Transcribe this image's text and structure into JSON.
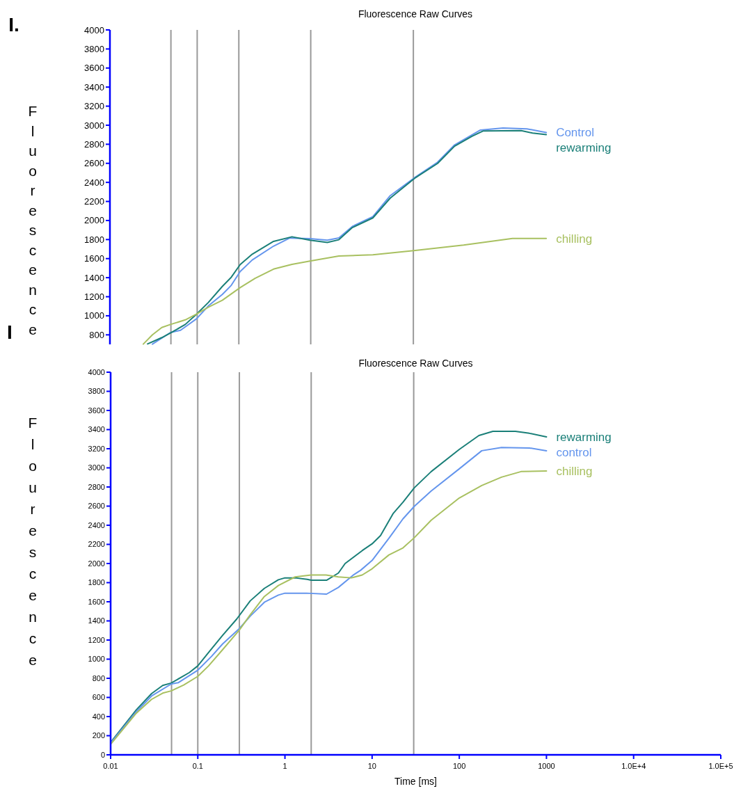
{
  "chart_data": [
    {
      "type": "line",
      "title": "Fluorescence Raw Curves",
      "ylabel": "Fluorescence",
      "annotations": [
        "I.",
        "I"
      ],
      "log": "x",
      "xlim": [
        0.01,
        100000
      ],
      "ylim": [
        700,
        4000
      ],
      "yticks": [
        800,
        1000,
        1200,
        1400,
        1600,
        1800,
        2000,
        2200,
        2400,
        2600,
        2800,
        3000,
        3200,
        3400,
        3600,
        3800,
        4000
      ],
      "tick_labels": "y",
      "ref_lines": [
        {
          "axis": "x",
          "value": 0.05,
          "color": "#999999"
        },
        {
          "axis": "x",
          "value": 0.1,
          "color": "#999999"
        },
        {
          "axis": "x",
          "value": 0.3,
          "color": "#999999"
        },
        {
          "axis": "x",
          "value": 2,
          "color": "#999999"
        },
        {
          "axis": "x",
          "value": 30,
          "color": "#999999"
        }
      ],
      "series": [
        {
          "name": "Control",
          "color": "#6495ed",
          "x": [
            0.0307,
            0.0494,
            0.0644,
            0.0985,
            0.134,
            0.194,
            0.246,
            0.311,
            0.428,
            0.75,
            1.15,
            1.96,
            3.1,
            4.2,
            6.0,
            10.3,
            16.3,
            31.6,
            56.7,
            89,
            176,
            320,
            600,
            1000
          ],
          "values": [
            703,
            824,
            848,
            969,
            1103,
            1224,
            1320,
            1465,
            1586,
            1731,
            1816,
            1809,
            1793,
            1817,
            1938,
            2040,
            2261,
            2455,
            2611,
            2793,
            2949,
            2970,
            2962,
            2923
          ]
        },
        {
          "name": "rewarming",
          "color": "#1a7f78",
          "x": [
            0.027,
            0.0393,
            0.0494,
            0.073,
            0.0985,
            0.134,
            0.194,
            0.246,
            0.311,
            0.428,
            0.75,
            1.22,
            1.96,
            3.1,
            4.2,
            6.0,
            10.3,
            16.3,
            31.6,
            56.7,
            89,
            141,
            190,
            516,
            696,
            1000
          ],
          "values": [
            705,
            771,
            819,
            909,
            1018,
            1139,
            1308,
            1405,
            1538,
            1647,
            1781,
            1829,
            1793,
            1769,
            1798,
            1926,
            2027,
            2235,
            2448,
            2598,
            2780,
            2884,
            2940,
            2943,
            2917,
            2902
          ]
        },
        {
          "name": "chilling",
          "color": "#a8c060",
          "x": [
            0.0241,
            0.0307,
            0.0393,
            0.0494,
            0.073,
            0.0985,
            0.134,
            0.194,
            0.311,
            0.46,
            0.75,
            1.22,
            1.96,
            4.2,
            7.8,
            10.3,
            31.6,
            113,
            410,
            1000
          ],
          "values": [
            703,
            800,
            877,
            909,
            957,
            1018,
            1090,
            1163,
            1296,
            1393,
            1490,
            1539,
            1575,
            1628,
            1636,
            1640,
            1685,
            1742,
            1812,
            1812
          ]
        }
      ]
    },
    {
      "type": "line",
      "title": "Fluorescence Raw Curves",
      "xlabel": "Time [ms]",
      "ylabel": "Flourescence",
      "log": "x",
      "xlim": [
        0.01,
        100000
      ],
      "ylim": [
        0,
        4000
      ],
      "xticks": [
        {
          "value": 0.01,
          "label": "0.01"
        },
        {
          "value": 0.1,
          "label": "0.1"
        },
        {
          "value": 1,
          "label": "1"
        },
        {
          "value": 10,
          "label": "10"
        },
        {
          "value": 100,
          "label": "100"
        },
        {
          "value": 1000,
          "label": "1000"
        },
        {
          "value": 10000,
          "label": "1.0E+4"
        },
        {
          "value": 100000,
          "label": "1.0E+5"
        }
      ],
      "yticks": [
        0,
        200,
        400,
        600,
        800,
        1000,
        1200,
        1400,
        1600,
        1800,
        2000,
        2200,
        2400,
        2600,
        2800,
        3000,
        3200,
        3400,
        3600,
        3800,
        4000
      ],
      "ref_lines": [
        {
          "axis": "x",
          "value": 0.05,
          "color": "#999999"
        },
        {
          "axis": "x",
          "value": 0.1,
          "color": "#999999"
        },
        {
          "axis": "x",
          "value": 0.3,
          "color": "#999999"
        },
        {
          "axis": "x",
          "value": 2,
          "color": "#999999"
        },
        {
          "axis": "x",
          "value": 30,
          "color": "#999999"
        }
      ],
      "series": [
        {
          "name": "rewarming",
          "color": "#1a7f78",
          "x": [
            0.01,
            0.0197,
            0.0295,
            0.0396,
            0.0495,
            0.08,
            0.1,
            0.133,
            0.193,
            0.28,
            0.4,
            0.58,
            0.84,
            1,
            1.31,
            1.8,
            2,
            3.0,
            4.1,
            4.9,
            7.7,
            10,
            12.5,
            17.5,
            22.6,
            30.5,
            47.6,
            100,
            168,
            243,
            440,
            637,
            1000
          ],
          "values": [
            130,
            470,
            640,
            725,
            750,
            860,
            930,
            1070,
            1250,
            1420,
            1610,
            1740,
            1830,
            1850,
            1850,
            1835,
            1825,
            1825,
            1900,
            2000,
            2135,
            2206,
            2293,
            2525,
            2641,
            2792,
            2961,
            3193,
            3338,
            3382,
            3382,
            3361,
            3324
          ]
        },
        {
          "name": "control",
          "color": "#6495ed",
          "x": [
            0.01,
            0.0197,
            0.0295,
            0.0495,
            0.06,
            0.1,
            0.144,
            0.193,
            0.3,
            0.4,
            0.58,
            0.84,
            1,
            1.76,
            3.0,
            4.1,
            6.2,
            7.4,
            10,
            15.6,
            22.6,
            30.5,
            47.6,
            100,
            181,
            305,
            637,
            1000
          ],
          "values": [
            122,
            450,
            615,
            740,
            755,
            885,
            1030,
            1160,
            1320,
            1450,
            1595,
            1670,
            1690,
            1690,
            1680,
            1750,
            1885,
            1930,
            2032,
            2264,
            2467,
            2598,
            2758,
            2990,
            3179,
            3213,
            3208,
            3179
          ]
        },
        {
          "name": "chilling",
          "color": "#a8c060",
          "x": [
            0.01,
            0.0197,
            0.0295,
            0.0396,
            0.0495,
            0.069,
            0.1,
            0.133,
            0.193,
            0.3,
            0.4,
            0.58,
            0.84,
            1.31,
            2,
            2.96,
            4.1,
            5.8,
            7.7,
            10,
            15.6,
            22.6,
            30.5,
            47.6,
            100,
            181,
            305,
            511,
            1000
          ],
          "values": [
            110,
            435,
            580,
            645,
            668,
            730,
            820,
            930,
            1100,
            1305,
            1465,
            1655,
            1770,
            1860,
            1880,
            1880,
            1860,
            1850,
            1880,
            1945,
            2090,
            2163,
            2270,
            2453,
            2685,
            2816,
            2903,
            2961,
            2967
          ]
        }
      ]
    }
  ]
}
